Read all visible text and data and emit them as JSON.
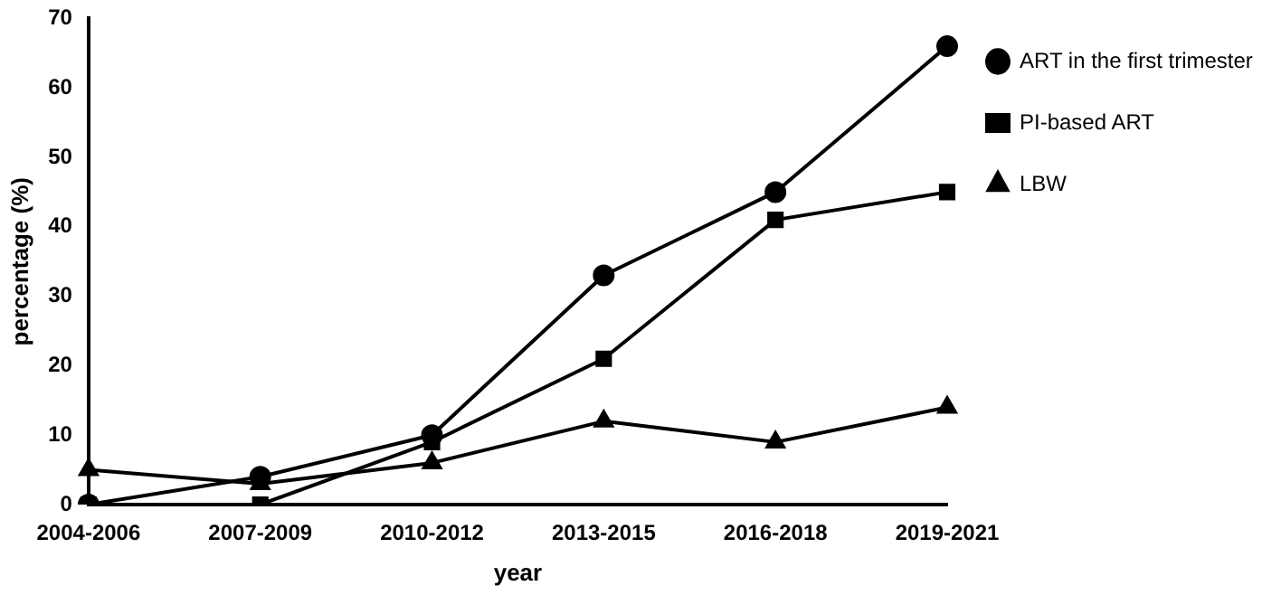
{
  "chart_data": {
    "type": "line",
    "xlabel": "year",
    "ylabel": "percentage (%)",
    "categories": [
      "2004-2006",
      "2007-2009",
      "2010-2012",
      "2013-2015",
      "2016-2018",
      "2019-2021"
    ],
    "series": [
      {
        "name": "ART in the first trimester",
        "color": "#000000",
        "marker": "circle",
        "values": [
          0,
          4,
          10,
          33,
          45,
          66
        ]
      },
      {
        "name": "PI-based ART",
        "color": "#000000",
        "marker": "square",
        "values": [
          0,
          0,
          9,
          21,
          41,
          45
        ]
      },
      {
        "name": "LBW",
        "color": "#000000",
        "marker": "triangle",
        "values": [
          5,
          3,
          6,
          12,
          9,
          14
        ]
      }
    ],
    "ylim": [
      0,
      70
    ],
    "yticks": [
      0,
      10,
      20,
      30,
      40,
      50,
      60,
      70
    ],
    "grid": false,
    "legend": "right",
    "line_style": "solid"
  }
}
